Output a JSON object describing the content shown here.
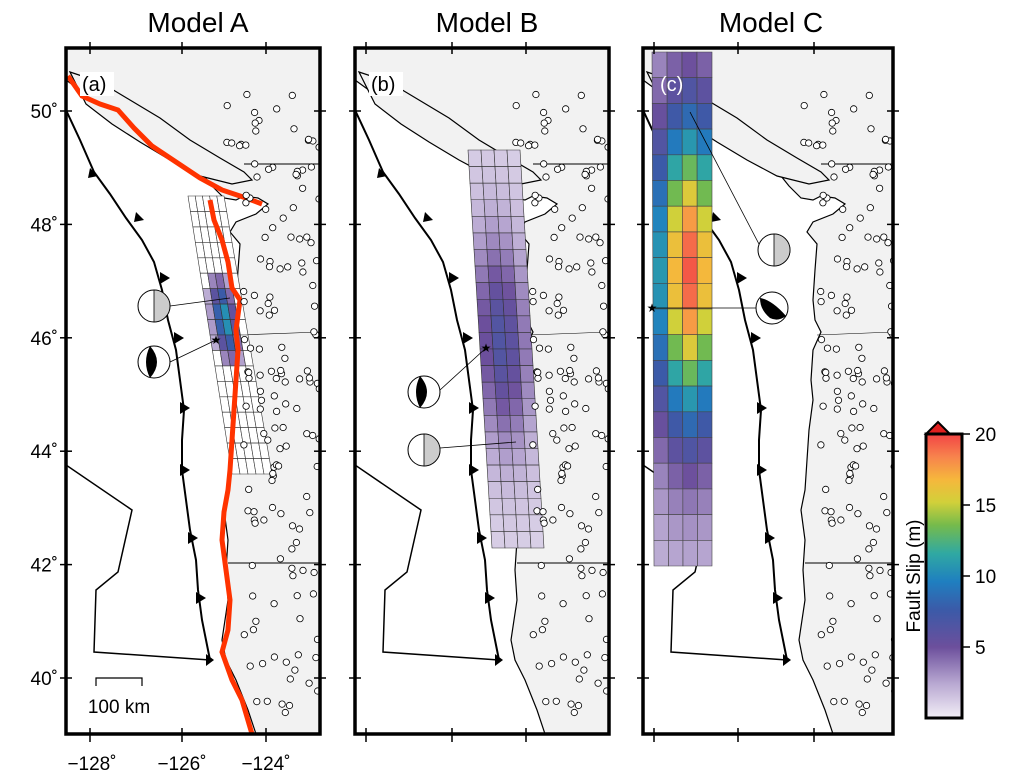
{
  "panels": [
    {
      "id": "a",
      "title": "Model A",
      "label": "(a)"
    },
    {
      "id": "b",
      "title": "Model B",
      "label": "(b)"
    },
    {
      "id": "c",
      "title": "Model C",
      "label": "(c)"
    }
  ],
  "lat_ticks": [
    {
      "value": 50,
      "label": "50˚"
    },
    {
      "value": 48,
      "label": "48˚"
    },
    {
      "value": 46,
      "label": "46˚"
    },
    {
      "value": 44,
      "label": "44˚"
    },
    {
      "value": 42,
      "label": "42˚"
    },
    {
      "value": 40,
      "label": "40˚"
    }
  ],
  "lon_ticks": [
    {
      "value": -128,
      "label": "−128˚"
    },
    {
      "value": -126,
      "label": "−126˚"
    },
    {
      "value": -124,
      "label": "−124˚"
    }
  ],
  "scale_bar": {
    "label": "100 km",
    "length_km": 100
  },
  "colorbar": {
    "title": "Fault Slip (m)",
    "ticks": [
      {
        "value": 5,
        "label": "5"
      },
      {
        "value": 10,
        "label": "10"
      },
      {
        "value": 15,
        "label": "15"
      },
      {
        "value": 20,
        "label": "20"
      }
    ],
    "min": 0,
    "max": 20
  },
  "colors": {
    "land": "#f2f2f2",
    "ocean": "#ffffff",
    "trench": "#000000",
    "red_line": "#ff3300",
    "star": "#000000"
  }
}
